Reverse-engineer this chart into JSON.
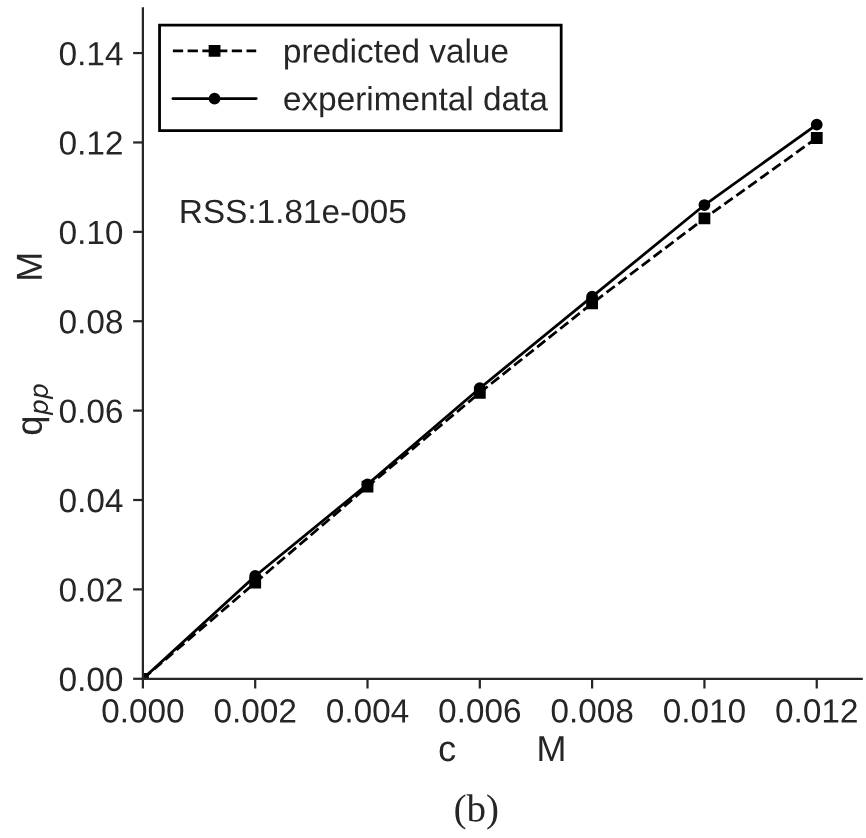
{
  "chart_data": {
    "type": "line",
    "xlabel": "c        M",
    "ylabel": "q$_{pp}$          M",
    "x": [
      0,
      0.002,
      0.004,
      0.006,
      0.008,
      0.01,
      0.012
    ],
    "series": [
      {
        "name": "predicted value",
        "color": "#000000",
        "marker": "square",
        "line_style": "dashed",
        "values": [
          0,
          0.0215,
          0.043,
          0.064,
          0.084,
          0.103,
          0.121
        ]
      },
      {
        "name": "experimental data",
        "color": "#000000",
        "marker": "circle",
        "line_style": "solid",
        "values": [
          0,
          0.023,
          0.0435,
          0.065,
          0.0855,
          0.106,
          0.124
        ]
      }
    ],
    "xlim": [
      0,
      0.0128
    ],
    "ylim": [
      0,
      0.15
    ],
    "xticks": [
      {
        "value": 0,
        "label": "0.000"
      },
      0.002,
      0.004,
      0.006,
      0.008,
      {
        "value": 0.01,
        "label": "0.010"
      },
      0.012
    ],
    "yticks": [
      {
        "value": 0,
        "label": "0.00"
      },
      0.02,
      0.04,
      0.06,
      0.08,
      {
        "value": 0.1,
        "label": "0.10"
      },
      0.12,
      0.14
    ],
    "legend": "top left",
    "grid": false,
    "annotations": [
      "RSS:1.81e-005",
      "(b)"
    ]
  }
}
